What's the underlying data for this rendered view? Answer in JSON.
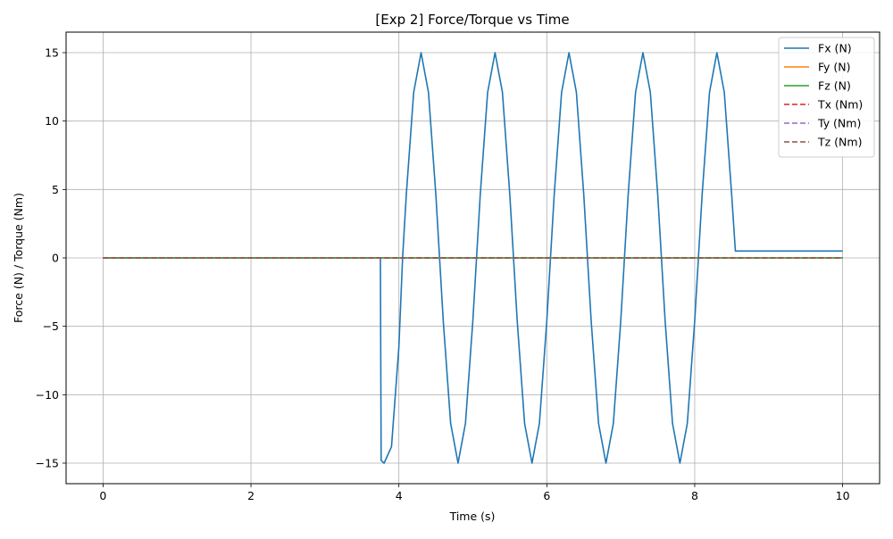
{
  "chart_data": {
    "type": "line",
    "title": "[Exp 2] Force/Torque vs Time",
    "xlabel": "Time (s)",
    "ylabel": "Force (N) / Torque (Nm)",
    "xlim": [
      -0.5,
      10.5
    ],
    "ylim": [
      -16.5,
      16.5
    ],
    "xticks": [
      0,
      2,
      4,
      6,
      8,
      10
    ],
    "yticks": [
      -15,
      -10,
      -5,
      0,
      5,
      10,
      15
    ],
    "xtick_labels": [
      "0",
      "2",
      "4",
      "6",
      "8",
      "10"
    ],
    "ytick_labels": [
      "−15",
      "−10",
      "−5",
      "0",
      "5",
      "10",
      "15"
    ],
    "grid": true,
    "legend_position": "top-right",
    "series": [
      {
        "name": "Fx (N)",
        "color": "#1f77b4",
        "style": "solid",
        "description_of_shape": "zero until 3.75 s, drops to -15, sinusoid amplitude 15 period 1 s until 8.55 s, then constant 0.5",
        "points": [
          [
            0,
            0
          ],
          [
            3.75,
            0
          ],
          [
            3.76,
            -14.8
          ],
          [
            3.8,
            -15.0
          ],
          [
            3.9,
            -13.8
          ],
          [
            4.0,
            -6.5
          ],
          [
            4.05,
            0
          ],
          [
            4.1,
            4.6
          ],
          [
            4.2,
            12.1
          ],
          [
            4.3,
            15.0
          ],
          [
            4.4,
            12.1
          ],
          [
            4.5,
            4.6
          ],
          [
            4.6,
            -4.6
          ],
          [
            4.7,
            -12.1
          ],
          [
            4.8,
            -15.0
          ],
          [
            4.9,
            -12.1
          ],
          [
            5.0,
            -4.6
          ],
          [
            5.1,
            4.6
          ],
          [
            5.2,
            12.1
          ],
          [
            5.3,
            15.0
          ],
          [
            5.4,
            12.1
          ],
          [
            5.5,
            4.6
          ],
          [
            5.6,
            -4.6
          ],
          [
            5.7,
            -12.1
          ],
          [
            5.8,
            -15.0
          ],
          [
            5.9,
            -12.1
          ],
          [
            6.0,
            -4.6
          ],
          [
            6.1,
            4.6
          ],
          [
            6.2,
            12.1
          ],
          [
            6.3,
            15.0
          ],
          [
            6.4,
            12.1
          ],
          [
            6.5,
            4.6
          ],
          [
            6.6,
            -4.6
          ],
          [
            6.7,
            -12.1
          ],
          [
            6.8,
            -15.0
          ],
          [
            6.9,
            -12.1
          ],
          [
            7.0,
            -4.6
          ],
          [
            7.1,
            4.6
          ],
          [
            7.2,
            12.1
          ],
          [
            7.3,
            15.0
          ],
          [
            7.4,
            12.1
          ],
          [
            7.5,
            4.6
          ],
          [
            7.6,
            -4.6
          ],
          [
            7.7,
            -12.1
          ],
          [
            7.8,
            -15.0
          ],
          [
            7.9,
            -12.1
          ],
          [
            8.0,
            -4.6
          ],
          [
            8.1,
            4.6
          ],
          [
            8.2,
            12.1
          ],
          [
            8.3,
            15.0
          ],
          [
            8.4,
            12.1
          ],
          [
            8.5,
            4.6
          ],
          [
            8.55,
            0.5
          ],
          [
            10,
            0.5
          ]
        ]
      },
      {
        "name": "Fy (N)",
        "color": "#ff7f0e",
        "style": "solid",
        "points": [
          [
            0,
            0
          ],
          [
            10,
            0
          ]
        ]
      },
      {
        "name": "Fz (N)",
        "color": "#2ca02c",
        "style": "solid",
        "points": [
          [
            0,
            0
          ],
          [
            10,
            0
          ]
        ]
      },
      {
        "name": "Tx (Nm)",
        "color": "#d62728",
        "style": "dashed",
        "points": [
          [
            0,
            0
          ],
          [
            10,
            0
          ]
        ]
      },
      {
        "name": "Ty (Nm)",
        "color": "#9467bd",
        "style": "dashed",
        "points": [
          [
            0,
            0
          ],
          [
            10,
            0
          ]
        ]
      },
      {
        "name": "Tz (Nm)",
        "color": "#8c564b",
        "style": "dashed",
        "points": [
          [
            0,
            0
          ],
          [
            10,
            0
          ]
        ]
      }
    ]
  }
}
